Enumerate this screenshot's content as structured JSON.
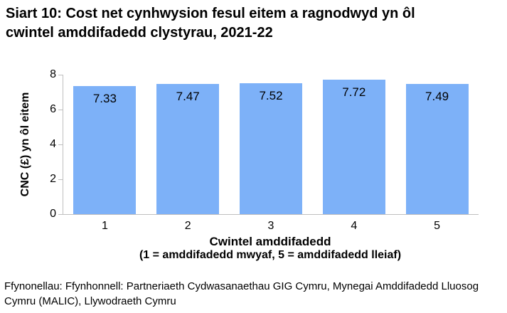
{
  "title": {
    "line1": "Siart 10: Cost net cynhwysion fesul eitem a ragnodwyd yn ôl",
    "line2": "cwintel amddifadedd clystyrau, 2021-22"
  },
  "chart_data": {
    "type": "bar",
    "categories": [
      "1",
      "2",
      "3",
      "4",
      "5"
    ],
    "values": [
      7.33,
      7.47,
      7.52,
      7.72,
      7.49
    ],
    "data_labels": [
      "7.33",
      "7.47",
      "7.52",
      "7.72",
      "7.49"
    ],
    "ylabel": "CNC (£) yn ôl eitem",
    "xlabel_line1": "Cwintel amddifadedd",
    "xlabel_line2": "(1 = amddifadedd mwyaf, 5 = amddifadedd lleiaf)",
    "ylim": [
      0,
      8
    ],
    "yticks": [
      "0",
      "2",
      "4",
      "6",
      "8"
    ],
    "grid": false,
    "legend": "none",
    "bar_color": "#7DB1F8",
    "axis_color": "#BFBFBF",
    "label_color": "#000000"
  },
  "footer": {
    "line1": "Ffynonellau: Ffynhonnell: Partneriaeth Cydwasanaethau GIG Cymru, Mynegai Amddifadedd Lluosog",
    "line2": "Cymru (MALIC), Llywodraeth Cymru"
  }
}
